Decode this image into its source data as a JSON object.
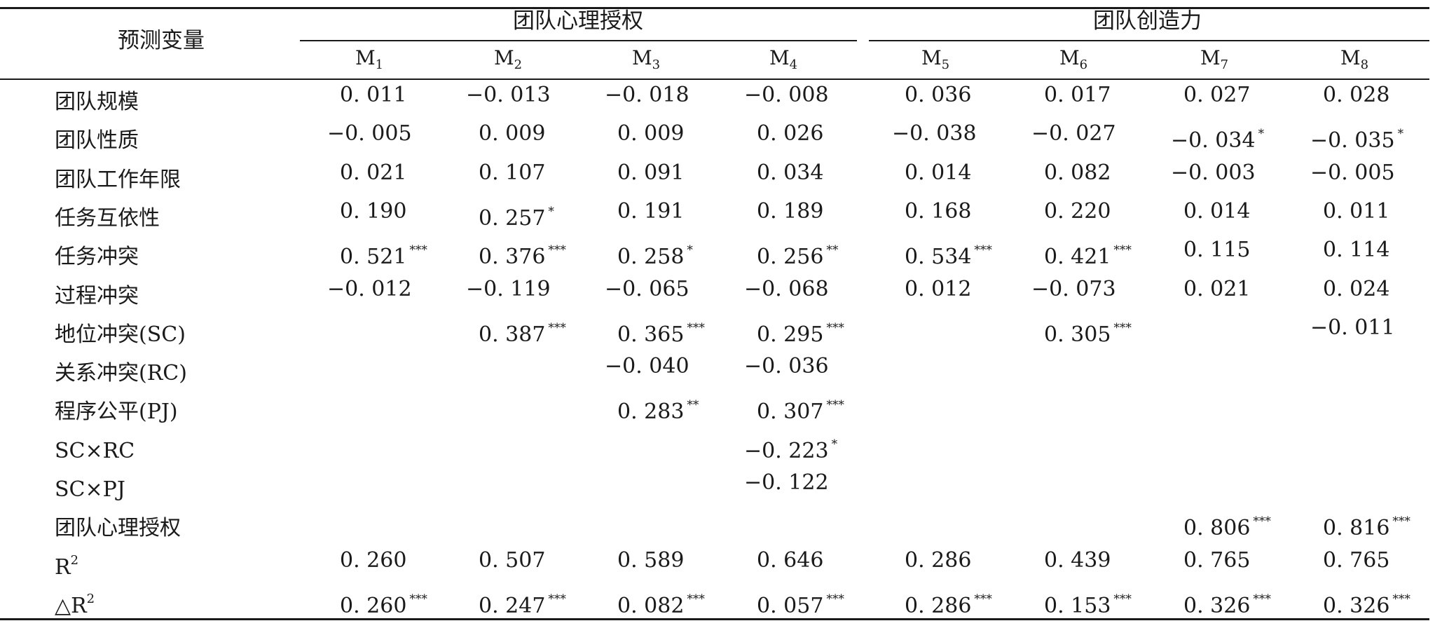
{
  "header": {
    "predictor": "预测变量",
    "group1": "团队心理授权",
    "group2": "团队创造力",
    "models": [
      {
        "base": "M",
        "sub": "1"
      },
      {
        "base": "M",
        "sub": "2"
      },
      {
        "base": "M",
        "sub": "3"
      },
      {
        "base": "M",
        "sub": "4"
      },
      {
        "base": "M",
        "sub": "5"
      },
      {
        "base": "M",
        "sub": "6"
      },
      {
        "base": "M",
        "sub": "7"
      },
      {
        "base": "M",
        "sub": "8"
      }
    ]
  },
  "rows": [
    {
      "label": "团队规模",
      "sup": "",
      "cells": [
        {
          "v": "0. 011",
          "s": ""
        },
        {
          "v": "−0. 013",
          "s": ""
        },
        {
          "v": "−0. 018",
          "s": ""
        },
        {
          "v": "−0. 008",
          "s": ""
        },
        {
          "v": "0. 036",
          "s": ""
        },
        {
          "v": "0. 017",
          "s": ""
        },
        {
          "v": "0. 027",
          "s": ""
        },
        {
          "v": "0. 028",
          "s": ""
        }
      ]
    },
    {
      "label": "团队性质",
      "sup": "",
      "cells": [
        {
          "v": "−0. 005",
          "s": ""
        },
        {
          "v": "0. 009",
          "s": ""
        },
        {
          "v": "0. 009",
          "s": ""
        },
        {
          "v": "0. 026",
          "s": ""
        },
        {
          "v": "−0. 038",
          "s": ""
        },
        {
          "v": "−0. 027",
          "s": ""
        },
        {
          "v": "−0. 034",
          "s": "*"
        },
        {
          "v": "−0. 035",
          "s": "*"
        }
      ]
    },
    {
      "label": "团队工作年限",
      "sup": "",
      "cells": [
        {
          "v": "0. 021",
          "s": ""
        },
        {
          "v": "0. 107",
          "s": ""
        },
        {
          "v": "0. 091",
          "s": ""
        },
        {
          "v": "0. 034",
          "s": ""
        },
        {
          "v": "0. 014",
          "s": ""
        },
        {
          "v": "0. 082",
          "s": ""
        },
        {
          "v": "−0. 003",
          "s": ""
        },
        {
          "v": "−0. 005",
          "s": ""
        }
      ]
    },
    {
      "label": "任务互依性",
      "sup": "",
      "cells": [
        {
          "v": "0. 190",
          "s": ""
        },
        {
          "v": "0. 257",
          "s": "*"
        },
        {
          "v": "0. 191",
          "s": ""
        },
        {
          "v": "0. 189",
          "s": ""
        },
        {
          "v": "0. 168",
          "s": ""
        },
        {
          "v": "0. 220",
          "s": ""
        },
        {
          "v": "0. 014",
          "s": ""
        },
        {
          "v": "0. 011",
          "s": ""
        }
      ]
    },
    {
      "label": "任务冲突",
      "sup": "",
      "cells": [
        {
          "v": "0. 521",
          "s": "***"
        },
        {
          "v": "0. 376",
          "s": "***"
        },
        {
          "v": "0. 258",
          "s": "*"
        },
        {
          "v": "0. 256",
          "s": "**"
        },
        {
          "v": "0. 534",
          "s": "***"
        },
        {
          "v": "0. 421",
          "s": "***"
        },
        {
          "v": "0. 115",
          "s": ""
        },
        {
          "v": "0. 114",
          "s": ""
        }
      ]
    },
    {
      "label": "过程冲突",
      "sup": "",
      "cells": [
        {
          "v": "−0. 012",
          "s": ""
        },
        {
          "v": "−0. 119",
          "s": ""
        },
        {
          "v": "−0. 065",
          "s": ""
        },
        {
          "v": "−0. 068",
          "s": ""
        },
        {
          "v": "0. 012",
          "s": ""
        },
        {
          "v": "−0. 073",
          "s": ""
        },
        {
          "v": "0. 021",
          "s": ""
        },
        {
          "v": "0. 024",
          "s": ""
        }
      ]
    },
    {
      "label": "地位冲突(SC)",
      "sup": "",
      "cells": [
        {
          "v": "",
          "s": ""
        },
        {
          "v": "0. 387",
          "s": "***"
        },
        {
          "v": "0. 365",
          "s": "***"
        },
        {
          "v": "0. 295",
          "s": "***"
        },
        {
          "v": "",
          "s": ""
        },
        {
          "v": "0. 305",
          "s": "***"
        },
        {
          "v": "",
          "s": ""
        },
        {
          "v": "−0. 011",
          "s": ""
        }
      ]
    },
    {
      "label": "关系冲突(RC)",
      "sup": "",
      "cells": [
        {
          "v": "",
          "s": ""
        },
        {
          "v": "",
          "s": ""
        },
        {
          "v": "−0. 040",
          "s": ""
        },
        {
          "v": "−0. 036",
          "s": ""
        },
        {
          "v": "",
          "s": ""
        },
        {
          "v": "",
          "s": ""
        },
        {
          "v": "",
          "s": ""
        },
        {
          "v": "",
          "s": ""
        }
      ]
    },
    {
      "label": "程序公平(PJ)",
      "sup": "",
      "cells": [
        {
          "v": "",
          "s": ""
        },
        {
          "v": "",
          "s": ""
        },
        {
          "v": "0. 283",
          "s": "**"
        },
        {
          "v": "0. 307",
          "s": "***"
        },
        {
          "v": "",
          "s": ""
        },
        {
          "v": "",
          "s": ""
        },
        {
          "v": "",
          "s": ""
        },
        {
          "v": "",
          "s": ""
        }
      ]
    },
    {
      "label": "SC×RC",
      "sup": "",
      "cells": [
        {
          "v": "",
          "s": ""
        },
        {
          "v": "",
          "s": ""
        },
        {
          "v": "",
          "s": ""
        },
        {
          "v": "−0. 223",
          "s": "*"
        },
        {
          "v": "",
          "s": ""
        },
        {
          "v": "",
          "s": ""
        },
        {
          "v": "",
          "s": ""
        },
        {
          "v": "",
          "s": ""
        }
      ]
    },
    {
      "label": "SC×PJ",
      "sup": "",
      "cells": [
        {
          "v": "",
          "s": ""
        },
        {
          "v": "",
          "s": ""
        },
        {
          "v": "",
          "s": ""
        },
        {
          "v": "−0. 122",
          "s": ""
        },
        {
          "v": "",
          "s": ""
        },
        {
          "v": "",
          "s": ""
        },
        {
          "v": "",
          "s": ""
        },
        {
          "v": "",
          "s": ""
        }
      ]
    },
    {
      "label": "团队心理授权",
      "sup": "",
      "cells": [
        {
          "v": "",
          "s": ""
        },
        {
          "v": "",
          "s": ""
        },
        {
          "v": "",
          "s": ""
        },
        {
          "v": "",
          "s": ""
        },
        {
          "v": "",
          "s": ""
        },
        {
          "v": "",
          "s": ""
        },
        {
          "v": "0. 806",
          "s": "***"
        },
        {
          "v": "0. 816",
          "s": "***"
        }
      ]
    },
    {
      "label": "R",
      "sup": "2",
      "cells": [
        {
          "v": "0. 260",
          "s": ""
        },
        {
          "v": "0. 507",
          "s": ""
        },
        {
          "v": "0. 589",
          "s": ""
        },
        {
          "v": "0. 646",
          "s": ""
        },
        {
          "v": "0. 286",
          "s": ""
        },
        {
          "v": "0. 439",
          "s": ""
        },
        {
          "v": "0. 765",
          "s": ""
        },
        {
          "v": "0. 765",
          "s": ""
        }
      ]
    },
    {
      "label": "△R",
      "sup": "2",
      "cells": [
        {
          "v": "0. 260",
          "s": "***"
        },
        {
          "v": "0. 247",
          "s": "***"
        },
        {
          "v": "0. 082",
          "s": "***"
        },
        {
          "v": "0. 057",
          "s": "***"
        },
        {
          "v": "0. 286",
          "s": "***"
        },
        {
          "v": "0. 153",
          "s": "***"
        },
        {
          "v": "0. 326",
          "s": "***"
        },
        {
          "v": "0. 326",
          "s": "***"
        }
      ]
    }
  ]
}
